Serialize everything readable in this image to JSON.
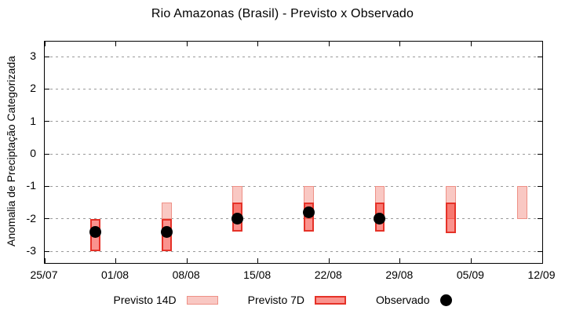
{
  "title": "Rio Amazonas (Brasil) - Previsto x Observado",
  "axes": {
    "ylabel": "Anomalia de Preciptação Categorizada",
    "x_tick_labels": [
      "25/07",
      "01/08",
      "08/08",
      "15/08",
      "22/08",
      "29/08",
      "05/09",
      "12/09"
    ],
    "y_tick_labels": [
      "3",
      "2",
      "1",
      "0",
      "-1",
      "-2",
      "-3"
    ]
  },
  "legend": {
    "items": [
      {
        "label": "Previsto 14D",
        "swatch": "light-range-box"
      },
      {
        "label": "Previsto 7D",
        "swatch": "dark-range-box"
      },
      {
        "label": "Observado",
        "swatch": "black-dot"
      }
    ]
  },
  "colors": {
    "forecast14_fill": "#f9c8c3",
    "forecast14_border": "#ee9086",
    "forecast7_fill": "rgba(245,40,30,0.5)",
    "forecast7_border": "#e53228",
    "observed": "#000000",
    "grid": "#9a9a9a"
  },
  "chart_data": {
    "type": "bar",
    "subtype": "forecast-range-boxes-with-observed-scatter",
    "title": "Rio Amazonas (Brasil) - Previsto x Observado",
    "xlabel": "",
    "ylabel": "Anomalia de Preciptação Categorizada",
    "ylim": [
      -3.36,
      3.46
    ],
    "y_ticks": [
      3,
      2,
      1,
      0,
      -1,
      -2,
      -3
    ],
    "grid": "horizontal-dotted",
    "legend_position": "below-plot",
    "x_axis": {
      "tick_labels": [
        "25/07",
        "01/08",
        "08/08",
        "15/08",
        "22/08",
        "29/08",
        "05/09",
        "12/09"
      ],
      "tick_days": [
        0,
        7,
        14,
        21,
        28,
        35,
        42,
        49
      ],
      "day_range": [
        0,
        49
      ]
    },
    "bar_width_days": 1,
    "series": [
      {
        "name": "Previsto 14D",
        "type": "range-bar",
        "fill": "#f9c8c3",
        "border": "#ee9086",
        "points": [
          {
            "date": "06/08",
            "day": 12,
            "low": -2.0,
            "high": -1.5
          },
          {
            "date": "13/08",
            "day": 19,
            "low": -2.0,
            "high": -1.0
          },
          {
            "date": "20/08",
            "day": 26,
            "low": -2.0,
            "high": -1.0
          },
          {
            "date": "27/08",
            "day": 33,
            "low": -2.0,
            "high": -1.0
          },
          {
            "date": "03/09",
            "day": 40,
            "low": -2.0,
            "high": -1.0
          },
          {
            "date": "10/09",
            "day": 47,
            "low": -2.0,
            "high": -1.0
          }
        ]
      },
      {
        "name": "Previsto 7D",
        "type": "range-bar",
        "fill": "rgba(245,40,30,0.5)",
        "border": "#e53228",
        "points": [
          {
            "date": "30/07",
            "day": 5,
            "low": -3.0,
            "high": -2.0
          },
          {
            "date": "06/08",
            "day": 12,
            "low": -3.0,
            "high": -2.0
          },
          {
            "date": "13/08",
            "day": 19,
            "low": -2.4,
            "high": -1.5
          },
          {
            "date": "20/08",
            "day": 26,
            "low": -2.4,
            "high": -1.5
          },
          {
            "date": "27/08",
            "day": 33,
            "low": -2.4,
            "high": -1.5
          },
          {
            "date": "03/09",
            "day": 40,
            "low": -2.45,
            "high": -1.5
          }
        ]
      },
      {
        "name": "Observado",
        "type": "scatter",
        "color": "#000000",
        "points": [
          {
            "date": "30/07",
            "day": 5,
            "value": -2.4
          },
          {
            "date": "06/08",
            "day": 12,
            "value": -2.4
          },
          {
            "date": "13/08",
            "day": 19,
            "value": -2.0
          },
          {
            "date": "20/08",
            "day": 26,
            "value": -1.8
          },
          {
            "date": "27/08",
            "day": 33,
            "value": -2.0
          }
        ]
      }
    ]
  }
}
